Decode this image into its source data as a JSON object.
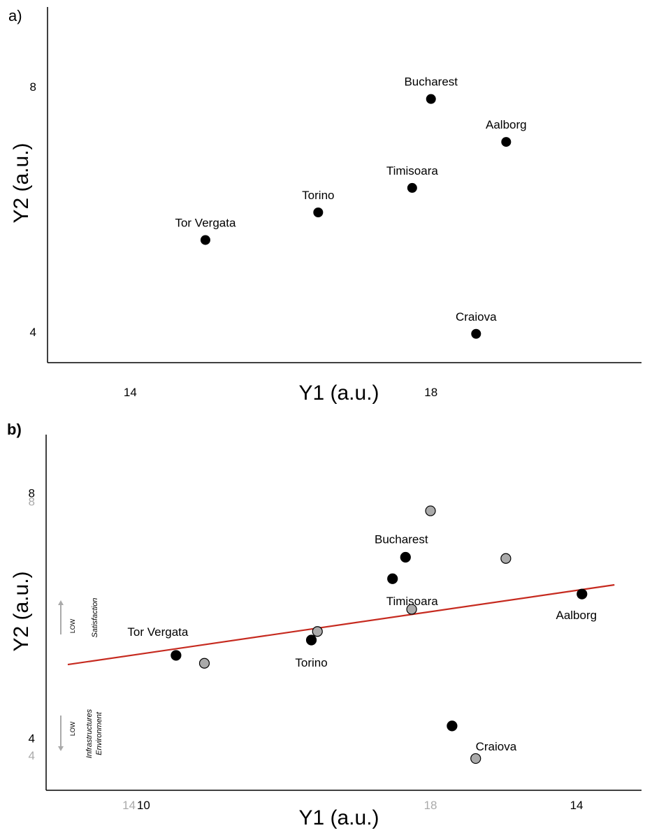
{
  "chart_data": [
    {
      "type": "scatter",
      "panel_label": "a)",
      "xlabel": "Y1 (a.u.)",
      "ylabel": "Y2 (a.u.)",
      "xlim": [
        12.9,
        20.8
      ],
      "ylim": [
        3.5,
        9.3
      ],
      "xticks": [
        {
          "value": 14,
          "label": "14"
        },
        {
          "value": 18,
          "label": "18"
        }
      ],
      "yticks": [
        {
          "value": 4,
          "label": "4"
        },
        {
          "value": 8,
          "label": "8"
        }
      ],
      "points": [
        {
          "label": "Tor Vergata",
          "x": 15.0,
          "y": 5.5
        },
        {
          "label": "Torino",
          "x": 16.5,
          "y": 5.95
        },
        {
          "label": "Timisoara",
          "x": 17.75,
          "y": 6.35
        },
        {
          "label": "Bucharest",
          "x": 18.0,
          "y": 7.8
        },
        {
          "label": "Aalborg",
          "x": 19.0,
          "y": 7.1
        },
        {
          "label": "Craiova",
          "x": 18.6,
          "y": 3.97
        }
      ],
      "grid": false
    },
    {
      "type": "scatter",
      "panel_label": "b)",
      "xlabel": "Y1 (a.u.)",
      "ylabel": "Y2 (a.u.)",
      "primary_axis_color": "#000000",
      "secondary_axis_color": "#aaaaaa",
      "xticks_primary": [
        {
          "value": 10,
          "label": "10"
        },
        {
          "value": 14,
          "label": "14"
        }
      ],
      "yticks_primary": [
        {
          "value": 4,
          "label": "4"
        },
        {
          "value": 8,
          "label": "8"
        }
      ],
      "xticks_secondary": [
        {
          "value": 14,
          "label": "14"
        },
        {
          "value": 18,
          "label": "18"
        }
      ],
      "yticks_secondary": [
        {
          "value": 4,
          "label": "4"
        },
        {
          "value": 8,
          "label": "8"
        }
      ],
      "xlim_primary": [
        9.1,
        14.6
      ],
      "ylim_primary": [
        3.15,
        8.95
      ],
      "xlim_secondary": [
        12.9,
        20.8
      ],
      "ylim_secondary": [
        3.45,
        9.05
      ],
      "series": [
        {
          "axes": "primary",
          "marker_color": "#000000",
          "points": [
            {
              "label": "Tor Vergata",
              "x": 10.3,
              "y": 5.35
            },
            {
              "label": "Torino",
              "x": 11.55,
              "y": 5.6
            },
            {
              "label": "Timisoara",
              "x": 12.3,
              "y": 6.6
            },
            {
              "label": "Bucharest",
              "x": 12.42,
              "y": 6.95
            },
            {
              "label": "Aalborg",
              "x": 14.05,
              "y": 6.35
            },
            {
              "label": "Craiova",
              "x": 12.85,
              "y": 4.2
            }
          ]
        },
        {
          "axes": "secondary",
          "marker_color": "#aaaaaa",
          "points": [
            {
              "x": 15.0,
              "y": 5.45
            },
            {
              "x": 16.5,
              "y": 5.95
            },
            {
              "x": 17.75,
              "y": 6.3
            },
            {
              "x": 18.0,
              "y": 7.85
            },
            {
              "x": 19.0,
              "y": 7.1
            },
            {
              "x": 18.6,
              "y": 3.95
            }
          ]
        }
      ],
      "fit_line": {
        "axes": "primary",
        "from": {
          "x": 9.3,
          "y": 5.2
        },
        "to": {
          "x": 14.35,
          "y": 6.5
        },
        "color": "#c62a1f"
      },
      "annotations": {
        "satisfaction": {
          "low": "LOW",
          "text": "Satisfaction"
        },
        "environment": {
          "low": "LOW",
          "line1": "Infrastructures",
          "line2": "Environment"
        }
      },
      "grid": false
    }
  ]
}
